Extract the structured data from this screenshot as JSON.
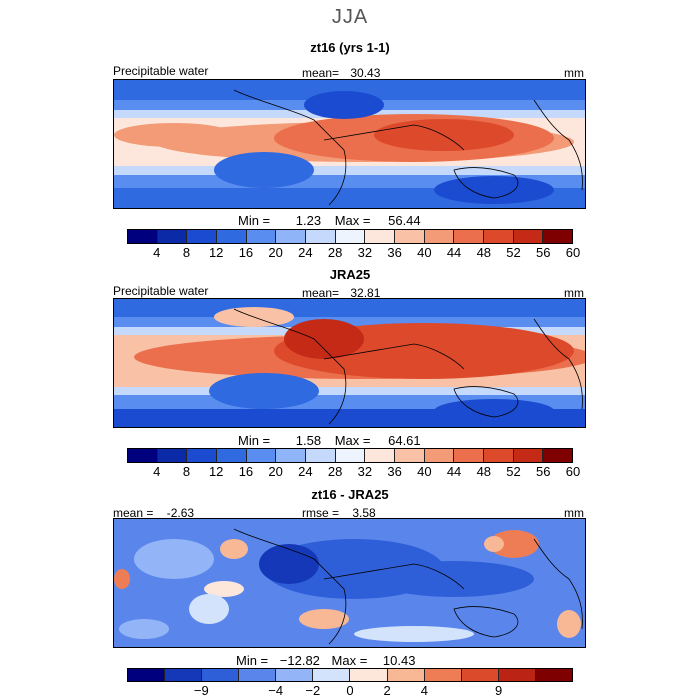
{
  "figure": {
    "season": "JJA"
  },
  "colors": {
    "levels15": [
      "#00007f",
      "#0a2aa8",
      "#1a4bd0",
      "#2f6ae0",
      "#5a8df0",
      "#8fb4f8",
      "#c4d9fb",
      "#eef4fe",
      "#fde7dc",
      "#f9c2a6",
      "#f39a76",
      "#eb6f4c",
      "#dd4a2b",
      "#c42a16",
      "#7f0000"
    ],
    "levels12": [
      "#00007f",
      "#1438b8",
      "#2f5fd8",
      "#5a86ec",
      "#93b5f7",
      "#d3e3fc",
      "#fde6da",
      "#f8b896",
      "#ee7d56",
      "#dc4a2c",
      "#bb2414",
      "#7f0000"
    ]
  },
  "panels": [
    {
      "title": "zt16 (yrs 1-1)",
      "left": "Precipitable water",
      "mean_label": "mean=",
      "mean": "30.43",
      "units": "mm",
      "min_label": "Min =",
      "min": "1.23",
      "max_label": "Max =",
      "max": "56.44"
    },
    {
      "title": "JRA25",
      "left": "Precipitable water",
      "mean_label": "mean=",
      "mean": "32.81",
      "units": "mm",
      "min_label": "Min =",
      "min": "1.58",
      "max_label": "Max =",
      "max": "64.61"
    },
    {
      "title": "zt16 - JRA25",
      "mean_label": "mean =",
      "mean": "-2.63",
      "rmse_label": "rmse =",
      "rmse": "3.58",
      "units": "mm",
      "min_label": "Min =",
      "min": "−12.82",
      "max_label": "Max =",
      "max": "10.43"
    }
  ],
  "chart_data": [
    {
      "type": "heatmap",
      "title": "zt16 (yrs 1-1)",
      "variable": "Precipitable water",
      "units": "mm",
      "mean": 30.43,
      "min": 1.23,
      "max": 56.44,
      "colorbar_ticks": [
        4,
        8,
        12,
        16,
        20,
        24,
        28,
        32,
        36,
        40,
        44,
        48,
        52,
        56,
        60
      ]
    },
    {
      "type": "heatmap",
      "title": "JRA25",
      "variable": "Precipitable water",
      "units": "mm",
      "mean": 32.81,
      "min": 1.58,
      "max": 64.61,
      "colorbar_ticks": [
        4,
        8,
        12,
        16,
        20,
        24,
        28,
        32,
        36,
        40,
        44,
        48,
        52,
        56,
        60
      ]
    },
    {
      "type": "heatmap",
      "title": "zt16 - JRA25",
      "units": "mm",
      "mean": -2.63,
      "rmse": 3.58,
      "min": -12.82,
      "max": 10.43,
      "colorbar_ticks": [
        "−9",
        "−4",
        "−2",
        "0",
        "2",
        "4",
        "9"
      ]
    }
  ]
}
